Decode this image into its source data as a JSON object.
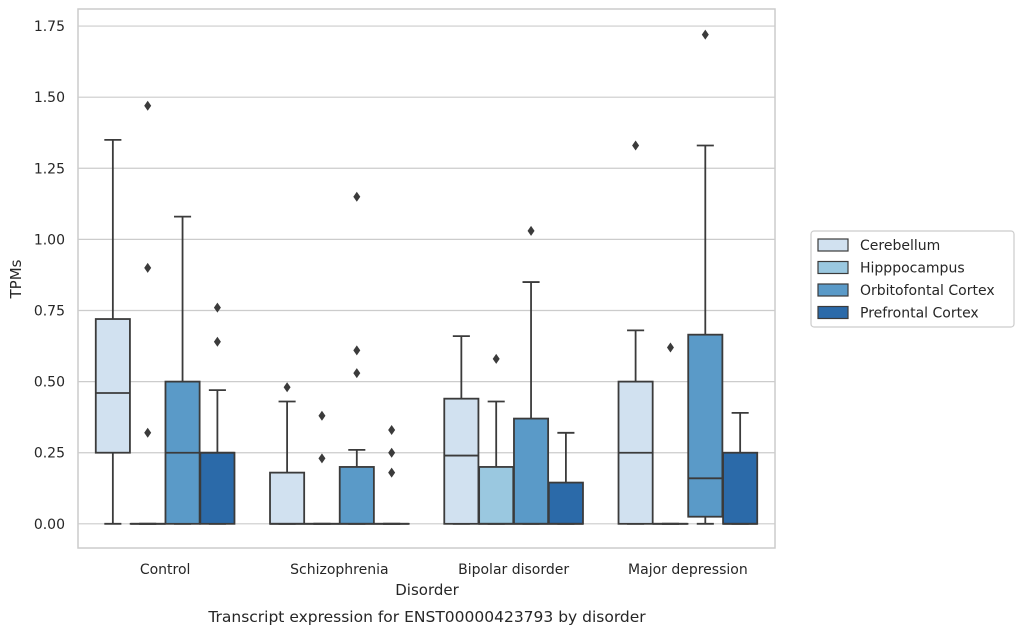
{
  "chart_data": {
    "type": "box",
    "xlabel": "Disorder",
    "ylabel": "TPMs",
    "caption": "Transcript expression for ENST00000423793 by disorder",
    "ylim": [
      -0.085,
      1.81
    ],
    "yticks": [
      0.0,
      0.25,
      0.5,
      0.75,
      1.0,
      1.25,
      1.5,
      1.75
    ],
    "ytick_labels": [
      "0.00",
      "0.25",
      "0.50",
      "0.75",
      "1.00",
      "1.25",
      "1.50",
      "1.75"
    ],
    "grid": "horizontal",
    "legend_position": "right",
    "categories": [
      "Control",
      "Schizophrenia",
      "Bipolar disorder",
      "Major depression"
    ],
    "series": [
      {
        "name": "Cerebellum",
        "color": "#d1e1f0",
        "boxes": [
          {
            "whislo": 0.0,
            "q1": 0.25,
            "med": 0.46,
            "q3": 0.72,
            "whishi": 1.35,
            "fliers": []
          },
          {
            "whislo": 0.0,
            "q1": 0.0,
            "med": 0.0,
            "q3": 0.18,
            "whishi": 0.43,
            "fliers": [
              0.48
            ]
          },
          {
            "whislo": 0.0,
            "q1": 0.0,
            "med": 0.24,
            "q3": 0.44,
            "whishi": 0.66,
            "fliers": []
          },
          {
            "whislo": 0.0,
            "q1": 0.0,
            "med": 0.25,
            "q3": 0.5,
            "whishi": 0.68,
            "fliers": [
              1.33
            ]
          }
        ]
      },
      {
        "name": "Hipppocampus",
        "color": "#9ac8e0",
        "boxes": [
          {
            "whislo": 0.0,
            "q1": 0.0,
            "med": 0.0,
            "q3": 0.0,
            "whishi": 0.0,
            "fliers": [
              0.32,
              0.9,
              1.47
            ]
          },
          {
            "whislo": 0.0,
            "q1": 0.0,
            "med": 0.0,
            "q3": 0.0,
            "whishi": 0.0,
            "fliers": [
              0.23,
              0.38
            ]
          },
          {
            "whislo": 0.0,
            "q1": 0.0,
            "med": 0.0,
            "q3": 0.2,
            "whishi": 0.43,
            "fliers": [
              0.58
            ]
          },
          {
            "whislo": 0.0,
            "q1": 0.0,
            "med": 0.0,
            "q3": 0.0,
            "whishi": 0.0,
            "fliers": [
              0.62
            ]
          }
        ]
      },
      {
        "name": "Orbitofontal Cortex",
        "color": "#5a9ac8",
        "boxes": [
          {
            "whislo": 0.0,
            "q1": 0.0,
            "med": 0.25,
            "q3": 0.5,
            "whishi": 1.08,
            "fliers": []
          },
          {
            "whislo": 0.0,
            "q1": 0.0,
            "med": 0.0,
            "q3": 0.2,
            "whishi": 0.26,
            "fliers": [
              0.53,
              0.61,
              1.15
            ]
          },
          {
            "whislo": 0.0,
            "q1": 0.0,
            "med": 0.0,
            "q3": 0.37,
            "whishi": 0.85,
            "fliers": [
              1.03
            ]
          },
          {
            "whislo": 0.0,
            "q1": 0.025,
            "med": 0.16,
            "q3": 0.665,
            "whishi": 1.33,
            "fliers": [
              1.72
            ]
          }
        ]
      },
      {
        "name": "Prefrontal Cortex",
        "color": "#2b6aa9",
        "boxes": [
          {
            "whislo": 0.0,
            "q1": 0.0,
            "med": 0.25,
            "q3": 0.25,
            "whishi": 0.47,
            "fliers": [
              0.64,
              0.76
            ]
          },
          {
            "whislo": 0.0,
            "q1": 0.0,
            "med": 0.0,
            "q3": 0.0,
            "whishi": 0.0,
            "fliers": [
              0.18,
              0.25,
              0.33
            ]
          },
          {
            "whislo": 0.0,
            "q1": 0.0,
            "med": 0.0,
            "q3": 0.145,
            "whishi": 0.32,
            "fliers": []
          },
          {
            "whislo": 0.0,
            "q1": 0.0,
            "med": 0.0,
            "q3": 0.25,
            "whishi": 0.39,
            "fliers": []
          }
        ]
      }
    ]
  }
}
